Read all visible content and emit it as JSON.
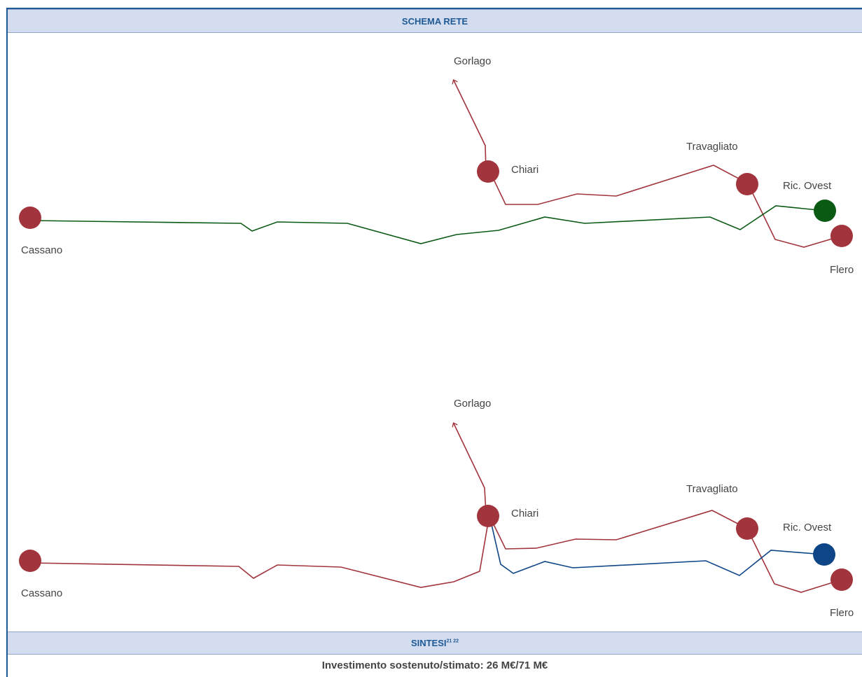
{
  "header": {
    "title": "SCHEMA RETE"
  },
  "sintesi": {
    "title": "SINTESI",
    "footnotes": "21 22"
  },
  "footer": {
    "investment": "Investimento sostenuto/stimato: 26 M€/71 M€"
  },
  "colors": {
    "frame": "#1f5a96",
    "bar_bg": "#d3ddef",
    "red": "#a1343c",
    "green": "#0b5a14",
    "blue": "#0e4587"
  },
  "diagrams": [
    {
      "labels": {
        "gorlago": "Gorlago",
        "chiari": "Chiari",
        "travagliato": "Travagliato",
        "ric_ovest": "Ric. Ovest",
        "cassano": "Cassano",
        "flero": "Flero"
      }
    },
    {
      "labels": {
        "gorlago": "Gorlago",
        "chiari": "Chiari",
        "travagliato": "Travagliato",
        "ric_ovest": "Ric. Ovest",
        "cassano": "Cassano",
        "flero": "Flero"
      }
    }
  ]
}
